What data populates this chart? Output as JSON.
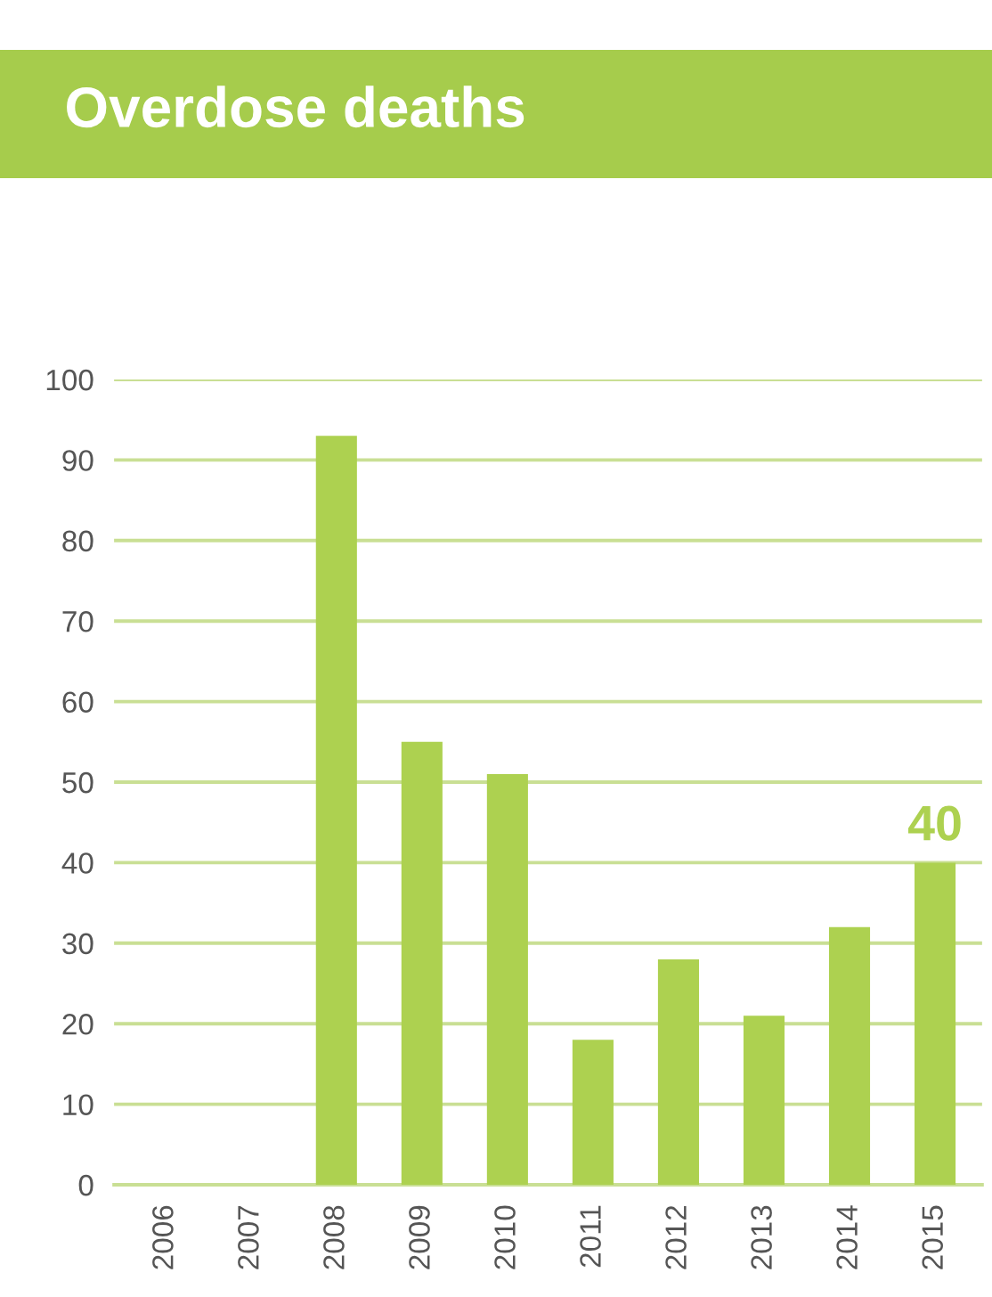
{
  "chart_data": {
    "type": "bar",
    "title": "Overdose deaths",
    "categories": [
      "2006",
      "2007",
      "2008",
      "2009",
      "2010",
      "2011",
      "2012",
      "2013",
      "2014",
      "2015"
    ],
    "values": [
      null,
      null,
      93,
      55,
      51,
      18,
      28,
      21,
      32,
      40
    ],
    "value_labels": [
      null,
      null,
      null,
      null,
      null,
      null,
      null,
      null,
      null,
      "40"
    ],
    "color": "#add150",
    "ylim": [
      0,
      100
    ],
    "yticks": [
      0,
      10,
      20,
      30,
      40,
      50,
      60,
      70,
      80,
      90,
      100
    ],
    "grid": "y"
  }
}
